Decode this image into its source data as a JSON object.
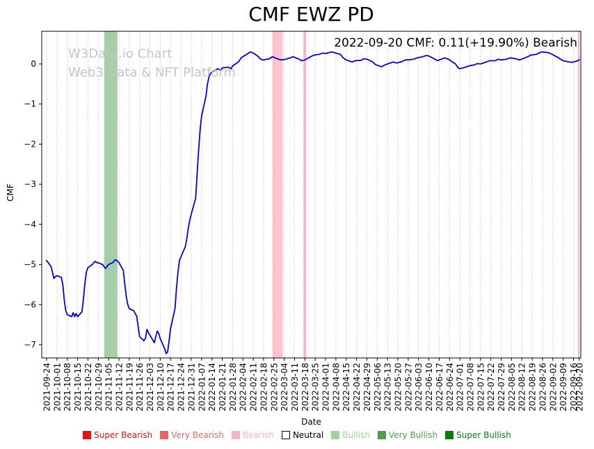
{
  "title": "CMF EWZ PD",
  "annotation": "2022-09-20 CMF: 0.11(+19.90%) Bearish",
  "watermark": {
    "line1": "W3Data.io Chart",
    "line2": "Web3 Data & NFT Platform"
  },
  "legend": {
    "items": [
      {
        "label": "Super Bearish",
        "swatch": "#ee1111",
        "text": "#ee1111",
        "edge": "none"
      },
      {
        "label": "Very Bearish",
        "swatch": "#e26868",
        "text": "#e26868",
        "edge": "none"
      },
      {
        "label": "Bearish",
        "swatch": "#f7b6bc",
        "text": "#f7b6bc",
        "edge": "none"
      },
      {
        "label": "Neutral",
        "swatch": "#ffffff",
        "text": "#000000",
        "edge": "#000000"
      },
      {
        "label": "Bullish",
        "swatch": "#a3d0a3",
        "text": "#a3d0a3",
        "edge": "none"
      },
      {
        "label": "Very Bullish",
        "swatch": "#4f9e4f",
        "text": "#4f9e4f",
        "edge": "none"
      },
      {
        "label": "Super Bullish",
        "swatch": "#077d07",
        "text": "#077d07",
        "edge": "none"
      }
    ]
  },
  "chart_data": {
    "type": "line",
    "title": "CMF EWZ PD",
    "xlabel": "Date",
    "ylabel": "CMF",
    "ylim": [
      -7.33,
      0.82
    ],
    "x_start": "2021-09-24",
    "x_end": "2022-09-20",
    "grid": "vertical-dotted",
    "grid_color": "#aaaaaa",
    "line_color": "#0000dd",
    "y_ticks": [
      0,
      -1,
      -2,
      -3,
      -4,
      -5,
      -6,
      -7
    ],
    "x_ticks": [
      "2021-09-24",
      "2021-10-01",
      "2021-10-08",
      "2021-10-15",
      "2021-10-22",
      "2021-10-29",
      "2021-11-05",
      "2021-11-12",
      "2021-11-19",
      "2021-11-26",
      "2021-12-03",
      "2021-12-10",
      "2021-12-17",
      "2021-12-24",
      "2021-12-31",
      "2022-01-07",
      "2022-01-14",
      "2022-01-21",
      "2022-01-28",
      "2022-02-04",
      "2022-02-11",
      "2022-02-18",
      "2022-02-25",
      "2022-03-04",
      "2022-03-11",
      "2022-03-18",
      "2022-03-25",
      "2022-04-01",
      "2022-04-08",
      "2022-04-15",
      "2022-04-22",
      "2022-04-29",
      "2022-05-06",
      "2022-05-13",
      "2022-05-20",
      "2022-05-27",
      "2022-06-03",
      "2022-06-10",
      "2022-06-17",
      "2022-06-24",
      "2022-07-01",
      "2022-07-08",
      "2022-07-15",
      "2022-07-22",
      "2022-07-29",
      "2022-08-05",
      "2022-08-12",
      "2022-08-19",
      "2022-08-26",
      "2022-09-02",
      "2022-09-09",
      "2022-09-16",
      "2022-09-20"
    ],
    "bands": [
      {
        "start": "2021-11-02",
        "end": "2021-11-11",
        "color": "rgba(80,160,80,0.5)",
        "label": "bullish"
      },
      {
        "start": "2022-02-24",
        "end": "2022-03-03",
        "color": "rgba(248,150,160,0.55)",
        "label": "bearish"
      },
      {
        "start": "2022-03-17",
        "end": "2022-03-19",
        "color": "rgba(248,150,160,0.65)",
        "label": "bearish"
      },
      {
        "start": "2022-09-19",
        "end": "2022-09-20",
        "color": "rgba(248,150,160,0.65)",
        "label": "bearish"
      }
    ],
    "series": [
      {
        "name": "CMF",
        "points": [
          [
            "2021-09-24",
            -4.9
          ],
          [
            "2021-09-27",
            -5.05
          ],
          [
            "2021-09-28",
            -5.2
          ],
          [
            "2021-09-29",
            -5.35
          ],
          [
            "2021-09-30",
            -5.3
          ],
          [
            "2021-10-01",
            -5.28
          ],
          [
            "2021-10-04",
            -5.32
          ],
          [
            "2021-10-05",
            -5.5
          ],
          [
            "2021-10-06",
            -5.9
          ],
          [
            "2021-10-07",
            -6.15
          ],
          [
            "2021-10-08",
            -6.25
          ],
          [
            "2021-10-11",
            -6.3
          ],
          [
            "2021-10-12",
            -6.2
          ],
          [
            "2021-10-13",
            -6.3
          ],
          [
            "2021-10-14",
            -6.22
          ],
          [
            "2021-10-15",
            -6.3
          ],
          [
            "2021-10-18",
            -6.18
          ],
          [
            "2021-10-19",
            -5.85
          ],
          [
            "2021-10-20",
            -5.45
          ],
          [
            "2021-10-21",
            -5.18
          ],
          [
            "2021-10-22",
            -5.08
          ],
          [
            "2021-10-25",
            -5.0
          ],
          [
            "2021-10-26",
            -4.95
          ],
          [
            "2021-10-27",
            -4.92
          ],
          [
            "2021-10-28",
            -4.95
          ],
          [
            "2021-10-29",
            -4.96
          ],
          [
            "2021-11-01",
            -5.0
          ],
          [
            "2021-11-02",
            -5.06
          ],
          [
            "2021-11-03",
            -5.1
          ],
          [
            "2021-11-04",
            -5.04
          ],
          [
            "2021-11-05",
            -5.0
          ],
          [
            "2021-11-08",
            -4.95
          ],
          [
            "2021-11-09",
            -4.9
          ],
          [
            "2021-11-10",
            -4.88
          ],
          [
            "2021-11-11",
            -4.92
          ],
          [
            "2021-11-12",
            -4.95
          ],
          [
            "2021-11-15",
            -5.15
          ],
          [
            "2021-11-16",
            -5.5
          ],
          [
            "2021-11-17",
            -5.8
          ],
          [
            "2021-11-18",
            -6.0
          ],
          [
            "2021-11-19",
            -6.1
          ],
          [
            "2021-11-22",
            -6.15
          ],
          [
            "2021-11-23",
            -6.22
          ],
          [
            "2021-11-24",
            -6.28
          ],
          [
            "2021-11-26",
            -6.8
          ],
          [
            "2021-11-29",
            -6.9
          ],
          [
            "2021-11-30",
            -6.84
          ],
          [
            "2021-12-01",
            -6.62
          ],
          [
            "2021-12-02",
            -6.7
          ],
          [
            "2021-12-03",
            -6.76
          ],
          [
            "2021-12-06",
            -6.95
          ],
          [
            "2021-12-07",
            -6.8
          ],
          [
            "2021-12-08",
            -6.66
          ],
          [
            "2021-12-09",
            -6.72
          ],
          [
            "2021-12-10",
            -6.85
          ],
          [
            "2021-12-13",
            -7.1
          ],
          [
            "2021-12-14",
            -7.22
          ],
          [
            "2021-12-15",
            -7.18
          ],
          [
            "2021-12-16",
            -6.9
          ],
          [
            "2021-12-17",
            -6.6
          ],
          [
            "2021-12-20",
            -6.1
          ],
          [
            "2021-12-21",
            -5.6
          ],
          [
            "2021-12-22",
            -5.2
          ],
          [
            "2021-12-23",
            -4.9
          ],
          [
            "2021-12-27",
            -4.55
          ],
          [
            "2021-12-28",
            -4.35
          ],
          [
            "2021-12-29",
            -4.1
          ],
          [
            "2021-12-30",
            -3.9
          ],
          [
            "2021-12-31",
            -3.75
          ],
          [
            "2022-01-03",
            -3.35
          ],
          [
            "2022-01-04",
            -2.75
          ],
          [
            "2022-01-05",
            -2.15
          ],
          [
            "2022-01-06",
            -1.65
          ],
          [
            "2022-01-07",
            -1.3
          ],
          [
            "2022-01-10",
            -0.8
          ],
          [
            "2022-01-11",
            -0.5
          ],
          [
            "2022-01-12",
            -0.33
          ],
          [
            "2022-01-13",
            -0.24
          ],
          [
            "2022-01-14",
            -0.2
          ],
          [
            "2022-01-18",
            -0.12
          ],
          [
            "2022-01-20",
            -0.16
          ],
          [
            "2022-01-21",
            -0.1
          ],
          [
            "2022-01-25",
            -0.08
          ],
          [
            "2022-01-27",
            -0.12
          ],
          [
            "2022-01-28",
            -0.05
          ],
          [
            "2022-02-01",
            0.05
          ],
          [
            "2022-02-03",
            0.16
          ],
          [
            "2022-02-07",
            0.25
          ],
          [
            "2022-02-09",
            0.3
          ],
          [
            "2022-02-11",
            0.27
          ],
          [
            "2022-02-14",
            0.2
          ],
          [
            "2022-02-16",
            0.12
          ],
          [
            "2022-02-18",
            0.1
          ],
          [
            "2022-02-22",
            0.13
          ],
          [
            "2022-02-24",
            0.18
          ],
          [
            "2022-02-28",
            0.12
          ],
          [
            "2022-03-02",
            0.1
          ],
          [
            "2022-03-04",
            0.11
          ],
          [
            "2022-03-08",
            0.15
          ],
          [
            "2022-03-10",
            0.18
          ],
          [
            "2022-03-14",
            0.12
          ],
          [
            "2022-03-16",
            0.08
          ],
          [
            "2022-03-18",
            0.1
          ],
          [
            "2022-03-22",
            0.18
          ],
          [
            "2022-03-24",
            0.22
          ],
          [
            "2022-03-28",
            0.24
          ],
          [
            "2022-03-30",
            0.27
          ],
          [
            "2022-04-01",
            0.26
          ],
          [
            "2022-04-05",
            0.3
          ],
          [
            "2022-04-07",
            0.28
          ],
          [
            "2022-04-11",
            0.24
          ],
          [
            "2022-04-13",
            0.15
          ],
          [
            "2022-04-15",
            0.1
          ],
          [
            "2022-04-19",
            0.05
          ],
          [
            "2022-04-21",
            0.08
          ],
          [
            "2022-04-25",
            0.09
          ],
          [
            "2022-04-27",
            0.13
          ],
          [
            "2022-04-29",
            0.12
          ],
          [
            "2022-05-03",
            0.05
          ],
          [
            "2022-05-05",
            -0.02
          ],
          [
            "2022-05-09",
            -0.07
          ],
          [
            "2022-05-11",
            -0.03
          ],
          [
            "2022-05-13",
            0.0
          ],
          [
            "2022-05-17",
            0.05
          ],
          [
            "2022-05-19",
            0.02
          ],
          [
            "2022-05-23",
            0.06
          ],
          [
            "2022-05-25",
            0.1
          ],
          [
            "2022-05-27",
            0.1
          ],
          [
            "2022-05-31",
            0.12
          ],
          [
            "2022-06-02",
            0.15
          ],
          [
            "2022-06-06",
            0.18
          ],
          [
            "2022-06-08",
            0.21
          ],
          [
            "2022-06-10",
            0.2
          ],
          [
            "2022-06-14",
            0.12
          ],
          [
            "2022-06-16",
            0.08
          ],
          [
            "2022-06-17",
            0.1
          ],
          [
            "2022-06-21",
            0.15
          ],
          [
            "2022-06-23",
            0.12
          ],
          [
            "2022-06-24",
            0.1
          ],
          [
            "2022-06-28",
            0.0
          ],
          [
            "2022-06-30",
            -0.1
          ],
          [
            "2022-07-01",
            -0.12
          ],
          [
            "2022-07-05",
            -0.08
          ],
          [
            "2022-07-07",
            -0.05
          ],
          [
            "2022-07-11",
            -0.02
          ],
          [
            "2022-07-13",
            0.01
          ],
          [
            "2022-07-15",
            0.0
          ],
          [
            "2022-07-19",
            0.05
          ],
          [
            "2022-07-21",
            0.08
          ],
          [
            "2022-07-25",
            0.08
          ],
          [
            "2022-07-27",
            0.12
          ],
          [
            "2022-07-29",
            0.1
          ],
          [
            "2022-08-02",
            0.12
          ],
          [
            "2022-08-04",
            0.15
          ],
          [
            "2022-08-08",
            0.13
          ],
          [
            "2022-08-10",
            0.1
          ],
          [
            "2022-08-12",
            0.12
          ],
          [
            "2022-08-16",
            0.18
          ],
          [
            "2022-08-18",
            0.22
          ],
          [
            "2022-08-22",
            0.24
          ],
          [
            "2022-08-24",
            0.28
          ],
          [
            "2022-08-26",
            0.3
          ],
          [
            "2022-08-30",
            0.28
          ],
          [
            "2022-09-01",
            0.25
          ],
          [
            "2022-09-06",
            0.15
          ],
          [
            "2022-09-08",
            0.1
          ],
          [
            "2022-09-09",
            0.08
          ],
          [
            "2022-09-13",
            0.05
          ],
          [
            "2022-09-15",
            0.04
          ],
          [
            "2022-09-16",
            0.05
          ],
          [
            "2022-09-19",
            0.08
          ],
          [
            "2022-09-20",
            0.11
          ]
        ]
      }
    ]
  }
}
